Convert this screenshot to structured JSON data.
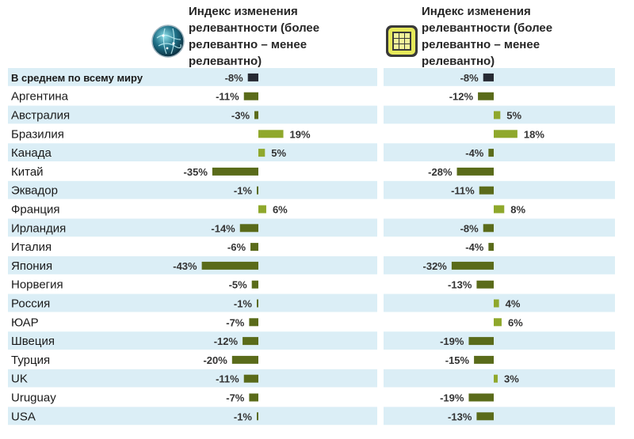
{
  "chart_data": {
    "type": "bar",
    "orientation": "horizontal",
    "categories": [
      "В среднем по всему миру",
      "Аргентина",
      "Австралия",
      "Бразилия",
      "Канада",
      "Китай",
      "Эквадор",
      "Франция",
      "Ирландия",
      "Италия",
      "Япония",
      "Норвегия",
      "Россия",
      "ЮАР",
      "Швеция",
      "Турция",
      "UK",
      "Uruguay",
      "USA"
    ],
    "series": [
      {
        "name": "Индекс изменения релевантности (более релевантно – менее релевантно)",
        "icon": "globe-icon",
        "values": [
          -8,
          -11,
          -3,
          19,
          5,
          -35,
          -1,
          6,
          -14,
          -6,
          -43,
          -5,
          -1,
          -7,
          -12,
          -20,
          -11,
          -7,
          -1
        ]
      },
      {
        "name": "Индекс изменения релевантности (более релевантно – менее релевантно)",
        "icon": "grid-icon",
        "values": [
          -8,
          -12,
          5,
          18,
          -4,
          -28,
          -11,
          8,
          -8,
          -4,
          -32,
          -13,
          4,
          6,
          -19,
          -15,
          3,
          -19,
          -13
        ]
      }
    ],
    "value_suffix": "%",
    "colors": {
      "average": "#262a33",
      "negative": "#5a6b1a",
      "positive": "#8fa82c",
      "row_band": "#dbeef6"
    }
  }
}
